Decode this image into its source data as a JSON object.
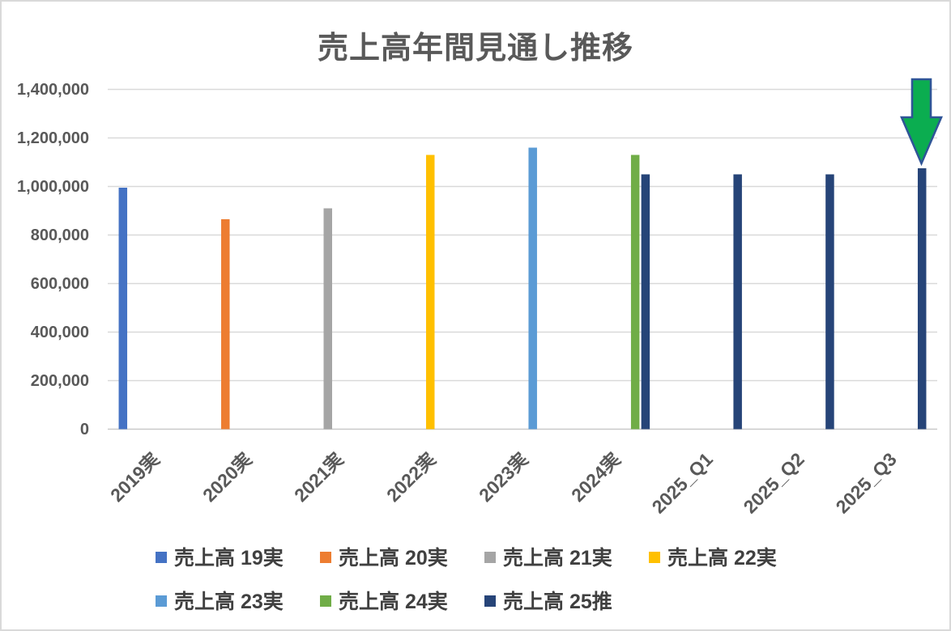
{
  "title": "売上高年間見通し推移",
  "chart_data": {
    "type": "bar",
    "title": "売上高年間見通し推移",
    "categories": [
      "2019実",
      "2020実",
      "2021実",
      "2022実",
      "2023実",
      "2024実",
      "2025_Q1",
      "2025_Q2",
      "2025_Q3"
    ],
    "series": [
      {
        "name": "売上高 19実",
        "color": "#4472C4",
        "values": [
          995000,
          null,
          null,
          null,
          null,
          null,
          null,
          null,
          null
        ]
      },
      {
        "name": "売上高 20実",
        "color": "#ED7D31",
        "values": [
          null,
          865000,
          null,
          null,
          null,
          null,
          null,
          null,
          null
        ]
      },
      {
        "name": "売上高 21実",
        "color": "#A5A5A5",
        "values": [
          null,
          null,
          910000,
          null,
          null,
          null,
          null,
          null,
          null
        ]
      },
      {
        "name": "売上高 22実",
        "color": "#FFC000",
        "values": [
          null,
          null,
          null,
          1130000,
          null,
          null,
          null,
          null,
          null
        ]
      },
      {
        "name": "売上高 23実",
        "color": "#5B9BD5",
        "values": [
          null,
          null,
          null,
          null,
          1160000,
          null,
          null,
          null,
          null
        ]
      },
      {
        "name": "売上高 24実",
        "color": "#70AD47",
        "values": [
          null,
          null,
          null,
          null,
          null,
          1130000,
          null,
          null,
          null
        ]
      },
      {
        "name": "売上高 25推",
        "color": "#264478",
        "values": [
          null,
          null,
          null,
          null,
          null,
          1050000,
          1050000,
          1050000,
          1075000
        ]
      }
    ],
    "y_axis": {
      "min": 0,
      "max": 1400000,
      "step": 200000,
      "tick_format": "thousands-comma"
    },
    "xlabel": "",
    "ylabel": "",
    "grid": true,
    "gridline_color": "#D9D9D9",
    "axis_line_color": "#C9C9C9",
    "text_color": "#595959",
    "legend_text_color": "#404040",
    "legend_position": "bottom-left",
    "legend_rows": [
      [
        0,
        1,
        2,
        3
      ],
      [
        4,
        5,
        6
      ]
    ]
  },
  "annotation": {
    "down_arrow": {
      "meaning": "highlight on latest forecast bar (2025_Q3)",
      "fill": "#0BAD50",
      "stroke": "#2F5597"
    }
  }
}
